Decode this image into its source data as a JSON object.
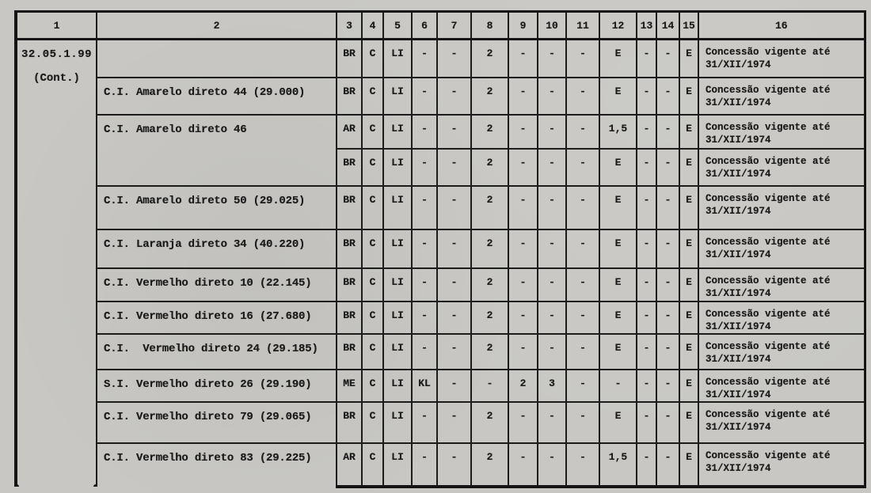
{
  "page": {
    "background_color": "#c8c7c3",
    "ink_color": "#1c1c1c"
  },
  "table": {
    "header": [
      "1",
      "2",
      "3",
      "4",
      "5",
      "6",
      "7",
      "8",
      "9",
      "10",
      "11",
      "12",
      "13",
      "14",
      "15",
      "16"
    ],
    "group": {
      "code": "32.05.1.99",
      "cont": "(Cont.)"
    },
    "rows": [
      {
        "desc": "",
        "desc_span": 1,
        "values": [
          "BR",
          "C",
          "LI",
          "-",
          "-",
          "2",
          "-",
          "-",
          "-",
          "E",
          "-",
          "-",
          "E"
        ],
        "note": "Concessão vigente até 31/XII/1974"
      },
      {
        "desc": "C.I. Amarelo direto 44 (29.000)",
        "desc_span": 1,
        "values": [
          "BR",
          "C",
          "LI",
          "-",
          "-",
          "2",
          "-",
          "-",
          "-",
          "E",
          "-",
          "-",
          "E"
        ],
        "note": "Concessão vigente até 31/XII/1974"
      },
      {
        "desc": "C.I. Amarelo direto 46",
        "desc_span": 2,
        "values": [
          "AR",
          "C",
          "LI",
          "-",
          "-",
          "2",
          "-",
          "-",
          "-",
          "1,5",
          "-",
          "-",
          "E"
        ],
        "note": "Concessão vigente até 31/XII/1974"
      },
      {
        "desc": null,
        "desc_span": 0,
        "values": [
          "BR",
          "C",
          "LI",
          "-",
          "-",
          "2",
          "-",
          "-",
          "-",
          "E",
          "-",
          "-",
          "E"
        ],
        "note": "Concessão vigente até 31/XII/1974"
      },
      {
        "desc": "C.I. Amarelo direto 50 (29.025)",
        "desc_span": 1,
        "values": [
          "BR",
          "C",
          "LI",
          "-",
          "-",
          "2",
          "-",
          "-",
          "-",
          "E",
          "-",
          "-",
          "E"
        ],
        "note": "Concessão vigente até 31/XII/1974"
      },
      {
        "desc": "C.I. Laranja direto 34 (40.220)",
        "desc_span": 1,
        "values": [
          "BR",
          "C",
          "LI",
          "-",
          "-",
          "2",
          "-",
          "-",
          "-",
          "E",
          "-",
          "-",
          "E"
        ],
        "note": "Concessão vigente até 31/XII/1974"
      },
      {
        "desc": "C.I. Vermelho direto 10 (22.145)",
        "desc_span": 1,
        "values": [
          "BR",
          "C",
          "LI",
          "-",
          "-",
          "2",
          "-",
          "-",
          "-",
          "E",
          "-",
          "-",
          "E"
        ],
        "note": "Concessão vigente até 31/XII/1974"
      },
      {
        "desc": "C.I. Vermelho direto 16 (27.680)",
        "desc_span": 1,
        "values": [
          "BR",
          "C",
          "LI",
          "-",
          "-",
          "2",
          "-",
          "-",
          "-",
          "E",
          "-",
          "-",
          "E"
        ],
        "note": "Concessão vigente até 31/XII/1974"
      },
      {
        "desc": "C.I.  Vermelho direto 24 (29.185)",
        "desc_span": 1,
        "values": [
          "BR",
          "C",
          "LI",
          "-",
          "-",
          "2",
          "-",
          "-",
          "-",
          "E",
          "-",
          "-",
          "E"
        ],
        "note": "Concessão vigente até 31/XII/1974"
      },
      {
        "desc": "S.I. Vermelho direto 26 (29.190)",
        "desc_span": 1,
        "values": [
          "ME",
          "C",
          "LI",
          "KL",
          "-",
          "-",
          "2",
          "3",
          "-",
          "-",
          "-",
          "-",
          "E"
        ],
        "note": "Concessão vigente até 31/XII/1974"
      },
      {
        "desc": "C.I. Vermelho direto 79 (29.065)",
        "desc_span": 1,
        "values": [
          "BR",
          "C",
          "LI",
          "-",
          "-",
          "2",
          "-",
          "-",
          "-",
          "E",
          "-",
          "-",
          "E"
        ],
        "note": "Concessão vigente até 31/XII/1974"
      },
      {
        "desc": "C.I. Vermelho direto 83 (29.225)",
        "desc_span": 1,
        "values": [
          "AR",
          "C",
          "LI",
          "-",
          "-",
          "2",
          "-",
          "-",
          "-",
          "1,5",
          "-",
          "-",
          "E"
        ],
        "note": "Concessão vigente até 31/XII/1974"
      }
    ]
  }
}
